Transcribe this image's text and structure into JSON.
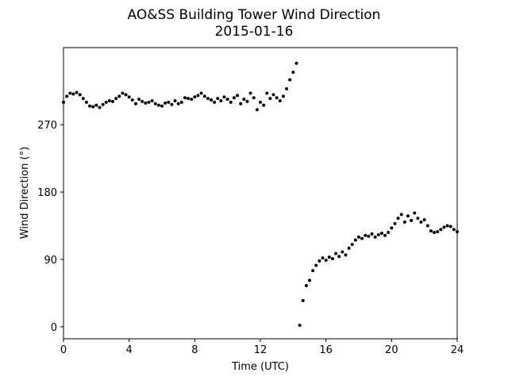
{
  "chart_data": {
    "type": "scatter",
    "title": "AO&SS Building Tower Wind Direction",
    "subtitle": "2015-01-16",
    "x_label": "Time (UTC)",
    "y_label": "Wind Direction (°)",
    "color": "#000000",
    "xlim": [
      0,
      24
    ],
    "xticks": [
      0,
      4,
      8,
      12,
      16,
      20,
      24
    ],
    "ylim": [
      -16,
      373
    ],
    "yticks": [
      0,
      90,
      180,
      270
    ],
    "grid": false,
    "x": [
      0,
      0.2,
      0.4,
      0.6,
      0.8,
      1,
      1.2,
      1.4,
      1.6,
      1.8,
      2,
      2.2,
      2.4,
      2.6,
      2.8,
      3,
      3.2,
      3.4,
      3.6,
      3.8,
      4,
      4.2,
      4.4,
      4.6,
      4.8,
      5,
      5.2,
      5.4,
      5.6,
      5.8,
      6,
      6.2,
      6.4,
      6.6,
      6.8,
      7,
      7.2,
      7.4,
      7.6,
      7.8,
      8,
      8.2,
      8.4,
      8.6,
      8.8,
      9,
      9.2,
      9.4,
      9.6,
      9.8,
      10,
      10.2,
      10.4,
      10.6,
      10.8,
      11,
      11.2,
      11.4,
      11.6,
      11.8,
      12,
      12.2,
      12.4,
      12.6,
      12.8,
      13,
      13.2,
      13.4,
      13.6,
      13.8,
      14,
      14.2,
      14.4,
      14.6,
      14.8,
      15,
      15.2,
      15.4,
      15.6,
      15.8,
      16,
      16.2,
      16.4,
      16.6,
      16.8,
      17,
      17.2,
      17.4,
      17.6,
      17.8,
      18,
      18.2,
      18.4,
      18.6,
      18.8,
      19,
      19.2,
      19.4,
      19.6,
      19.8,
      20,
      20.2,
      20.4,
      20.6,
      20.8,
      21,
      21.2,
      21.4,
      21.6,
      21.8,
      22,
      22.2,
      22.4,
      22.6,
      22.8,
      23,
      23.2,
      23.4,
      23.6,
      23.8,
      24
    ],
    "values": [
      300,
      308,
      312,
      311,
      313,
      310,
      305,
      300,
      295,
      294,
      296,
      293,
      297,
      300,
      302,
      301,
      305,
      308,
      312,
      310,
      307,
      303,
      298,
      304,
      301,
      299,
      300,
      302,
      298,
      296,
      295,
      299,
      300,
      297,
      302,
      298,
      300,
      306,
      305,
      304,
      307,
      309,
      312,
      308,
      305,
      303,
      300,
      305,
      302,
      307,
      304,
      300,
      306,
      309,
      298,
      304,
      301,
      312,
      306,
      290,
      300,
      296,
      312,
      305,
      310,
      306,
      302,
      308,
      318,
      330,
      340,
      352,
      2,
      35,
      55,
      62,
      75,
      82,
      88,
      92,
      89,
      93,
      91,
      98,
      94,
      100,
      96,
      105,
      110,
      116,
      120,
      118,
      122,
      121,
      124,
      120,
      123,
      125,
      122,
      126,
      132,
      138,
      145,
      150,
      140,
      148,
      142,
      152,
      145,
      140,
      143,
      135,
      128,
      126,
      127,
      130,
      133,
      135,
      134,
      130,
      127
    ]
  }
}
